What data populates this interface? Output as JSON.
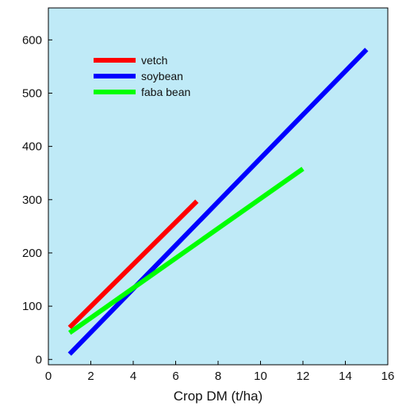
{
  "chart_data": {
    "type": "line",
    "title": "",
    "xlabel": "Crop DM (t/ha)",
    "ylabel": "",
    "xlim": [
      0,
      16
    ],
    "ylim": [
      -10,
      660
    ],
    "x_ticks": [
      0,
      2,
      4,
      6,
      8,
      10,
      12,
      14,
      16
    ],
    "y_ticks": [
      0,
      100,
      200,
      300,
      400,
      500,
      600
    ],
    "grid": false,
    "legend_position": "top-left",
    "background_color": "#bfeaf7",
    "series": [
      {
        "name": "vetch",
        "color": "#ff0000",
        "x": [
          1,
          7
        ],
        "y": [
          60,
          297
        ]
      },
      {
        "name": "soybean",
        "color": "#0000ff",
        "x": [
          1,
          15
        ],
        "y": [
          10,
          582
        ]
      },
      {
        "name": "faba bean",
        "color": "#00ff00",
        "x": [
          1,
          12
        ],
        "y": [
          50,
          358
        ]
      }
    ]
  }
}
